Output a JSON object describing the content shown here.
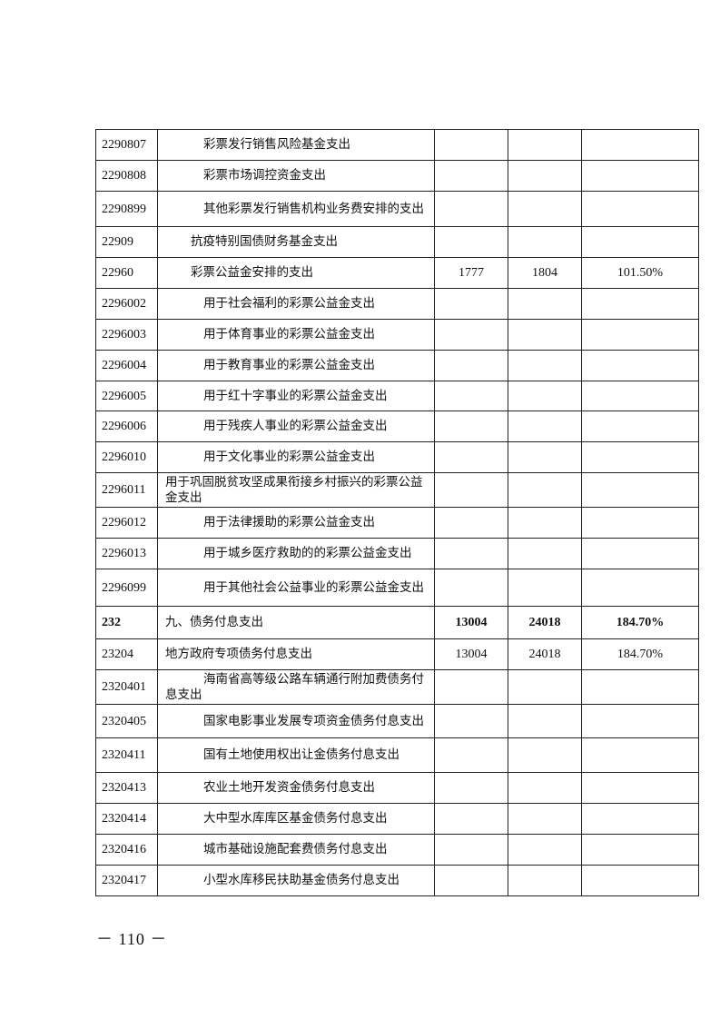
{
  "rows": [
    {
      "code": "2290807",
      "name": "彩票发行销售风险基金支出",
      "level": 2,
      "a": "",
      "b": "",
      "pct": ""
    },
    {
      "code": "2290808",
      "name": "彩票市场调控资金支出",
      "level": 2,
      "a": "",
      "b": "",
      "pct": ""
    },
    {
      "code": "2290899",
      "name": "其他彩票发行销售机构业务费安排的支出",
      "level": 2,
      "a": "",
      "b": "",
      "pct": ""
    },
    {
      "code": "22909",
      "name": "抗疫特别国债财务基金支出",
      "level": 1,
      "a": "",
      "b": "",
      "pct": ""
    },
    {
      "code": "22960",
      "name": "彩票公益金安排的支出",
      "level": 1,
      "a": "1777",
      "b": "1804",
      "pct": "101.50%"
    },
    {
      "code": "2296002",
      "name": "用于社会福利的彩票公益金支出",
      "level": 2,
      "a": "",
      "b": "",
      "pct": ""
    },
    {
      "code": "2296003",
      "name": "用于体育事业的彩票公益金支出",
      "level": 2,
      "a": "",
      "b": "",
      "pct": ""
    },
    {
      "code": "2296004",
      "name": "用于教育事业的彩票公益金支出",
      "level": 2,
      "a": "",
      "b": "",
      "pct": ""
    },
    {
      "code": "2296005",
      "name": "用于红十字事业的彩票公益金支出",
      "level": 2,
      "a": "",
      "b": "",
      "pct": ""
    },
    {
      "code": "2296006",
      "name": "用于残疾人事业的彩票公益金支出",
      "level": 2,
      "a": "",
      "b": "",
      "pct": ""
    },
    {
      "code": "2296010",
      "name": "用于文化事业的彩票公益金支出",
      "level": 2,
      "a": "",
      "b": "",
      "pct": ""
    },
    {
      "code": "2296011",
      "name": "用于巩固脱贫攻坚成果衔接乡村振兴的彩票公益金支出",
      "level": 0,
      "a": "",
      "b": "",
      "pct": ""
    },
    {
      "code": "2296012",
      "name": "用于法律援助的彩票公益金支出",
      "level": 2,
      "a": "",
      "b": "",
      "pct": ""
    },
    {
      "code": "2296013",
      "name": "用于城乡医疗救助的的彩票公益金支出",
      "level": 2,
      "a": "",
      "b": "",
      "pct": ""
    },
    {
      "code": "2296099",
      "name": "用于其他社会公益事业的彩票公益金支出",
      "level": 2,
      "a": "",
      "b": "",
      "pct": ""
    },
    {
      "code": "232",
      "name": "九、债务付息支出",
      "level": 0,
      "a": "13004",
      "b": "24018",
      "pct": "184.70%",
      "bold": true
    },
    {
      "code": "23204",
      "name": "地方政府专项债务付息支出",
      "level": 0,
      "a": "13004",
      "b": "24018",
      "pct": "184.70%"
    },
    {
      "code": "2320401",
      "name": "海南省高等级公路车辆通行附加费债务付息支出",
      "level": 2,
      "a": "",
      "b": "",
      "pct": ""
    },
    {
      "code": "2320405",
      "name": "国家电影事业发展专项资金债务付息支出",
      "level": 2,
      "a": "",
      "b": "",
      "pct": ""
    },
    {
      "code": "2320411",
      "name": "国有土地使用权出让金债务付息支出",
      "level": 2,
      "a": "",
      "b": "",
      "pct": ""
    },
    {
      "code": "2320413",
      "name": "农业土地开发资金债务付息支出",
      "level": 2,
      "a": "",
      "b": "",
      "pct": ""
    },
    {
      "code": "2320414",
      "name": "大中型水库库区基金债务付息支出",
      "level": 2,
      "a": "",
      "b": "",
      "pct": ""
    },
    {
      "code": "2320416",
      "name": "城市基础设施配套费债务付息支出",
      "level": 2,
      "a": "",
      "b": "",
      "pct": ""
    },
    {
      "code": "2320417",
      "name": "小型水库移民扶助基金债务付息支出",
      "level": 2,
      "a": "",
      "b": "",
      "pct": ""
    }
  ],
  "footer": {
    "page_number": "－ 110 －"
  }
}
